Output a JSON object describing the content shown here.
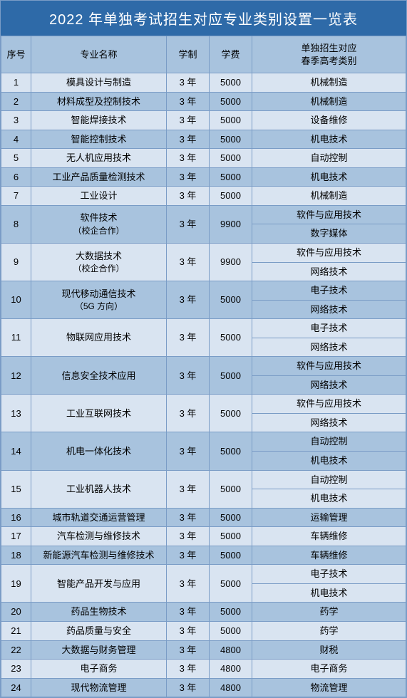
{
  "title": "2022 年单独考试招生对应专业类别设置一览表",
  "colors": {
    "header_bg": "#2e6aa8",
    "header_fg": "#ffffff",
    "band_dark": "#a8c3de",
    "band_light": "#d9e4f1",
    "border": "#7a9cc6",
    "text": "#000000"
  },
  "fontsize": {
    "title": 20,
    "header": 13,
    "cell": 13
  },
  "columns": {
    "idx": "序号",
    "name": "专业名称",
    "dur": "学制",
    "fee": "学费",
    "cat": "单独招生对应\n春季高考类别"
  },
  "rows": [
    {
      "idx": "1",
      "name": "模具设计与制造",
      "dur": "3 年",
      "fee": "5000",
      "cats": [
        "机械制造"
      ]
    },
    {
      "idx": "2",
      "name": "材料成型及控制技术",
      "dur": "3 年",
      "fee": "5000",
      "cats": [
        "机械制造"
      ]
    },
    {
      "idx": "3",
      "name": "智能焊接技术",
      "dur": "3 年",
      "fee": "5000",
      "cats": [
        "设备维修"
      ]
    },
    {
      "idx": "4",
      "name": "智能控制技术",
      "dur": "3 年",
      "fee": "5000",
      "cats": [
        "机电技术"
      ]
    },
    {
      "idx": "5",
      "name": "无人机应用技术",
      "dur": "3 年",
      "fee": "5000",
      "cats": [
        "自动控制"
      ]
    },
    {
      "idx": "6",
      "name": "工业产品质量检测技术",
      "dur": "3 年",
      "fee": "5000",
      "cats": [
        "机电技术"
      ]
    },
    {
      "idx": "7",
      "name": "工业设计",
      "dur": "3 年",
      "fee": "5000",
      "cats": [
        "机械制造"
      ]
    },
    {
      "idx": "8",
      "name": "软件技术",
      "sub": "（校企合作）",
      "dur": "3 年",
      "fee": "9900",
      "cats": [
        "软件与应用技术",
        "数字媒体"
      ]
    },
    {
      "idx": "9",
      "name": "大数据技术",
      "sub": "（校企合作）",
      "dur": "3 年",
      "fee": "9900",
      "cats": [
        "软件与应用技术",
        "网络技术"
      ]
    },
    {
      "idx": "10",
      "name": "现代移动通信技术",
      "sub": "（5G 方向）",
      "dur": "3 年",
      "fee": "5000",
      "cats": [
        "电子技术",
        "网络技术"
      ]
    },
    {
      "idx": "11",
      "name": "物联网应用技术",
      "dur": "3 年",
      "fee": "5000",
      "cats": [
        "电子技术",
        "网络技术"
      ]
    },
    {
      "idx": "12",
      "name": "信息安全技术应用",
      "dur": "3 年",
      "fee": "5000",
      "cats": [
        "软件与应用技术",
        "网络技术"
      ]
    },
    {
      "idx": "13",
      "name": "工业互联网技术",
      "dur": "3 年",
      "fee": "5000",
      "cats": [
        "软件与应用技术",
        "网络技术"
      ]
    },
    {
      "idx": "14",
      "name": "机电一体化技术",
      "dur": "3 年",
      "fee": "5000",
      "cats": [
        "自动控制",
        "机电技术"
      ]
    },
    {
      "idx": "15",
      "name": "工业机器人技术",
      "dur": "3 年",
      "fee": "5000",
      "cats": [
        "自动控制",
        "机电技术"
      ]
    },
    {
      "idx": "16",
      "name": "城市轨道交通运营管理",
      "dur": "3 年",
      "fee": "5000",
      "cats": [
        "运输管理"
      ]
    },
    {
      "idx": "17",
      "name": "汽车检测与维修技术",
      "dur": "3 年",
      "fee": "5000",
      "cats": [
        "车辆维修"
      ]
    },
    {
      "idx": "18",
      "name": "新能源汽车检测与维修技术",
      "dur": "3 年",
      "fee": "5000",
      "cats": [
        "车辆维修"
      ]
    },
    {
      "idx": "19",
      "name": "智能产品开发与应用",
      "dur": "3 年",
      "fee": "5000",
      "cats": [
        "电子技术",
        "机电技术"
      ]
    },
    {
      "idx": "20",
      "name": "药品生物技术",
      "dur": "3 年",
      "fee": "5000",
      "cats": [
        "药学"
      ]
    },
    {
      "idx": "21",
      "name": "药品质量与安全",
      "dur": "3 年",
      "fee": "5000",
      "cats": [
        "药学"
      ]
    },
    {
      "idx": "22",
      "name": "大数据与财务管理",
      "dur": "3 年",
      "fee": "4800",
      "cats": [
        "财税"
      ]
    },
    {
      "idx": "23",
      "name": "电子商务",
      "dur": "3 年",
      "fee": "4800",
      "cats": [
        "电子商务"
      ]
    },
    {
      "idx": "24",
      "name": "现代物流管理",
      "dur": "3 年",
      "fee": "4800",
      "cats": [
        "物流管理"
      ]
    }
  ]
}
